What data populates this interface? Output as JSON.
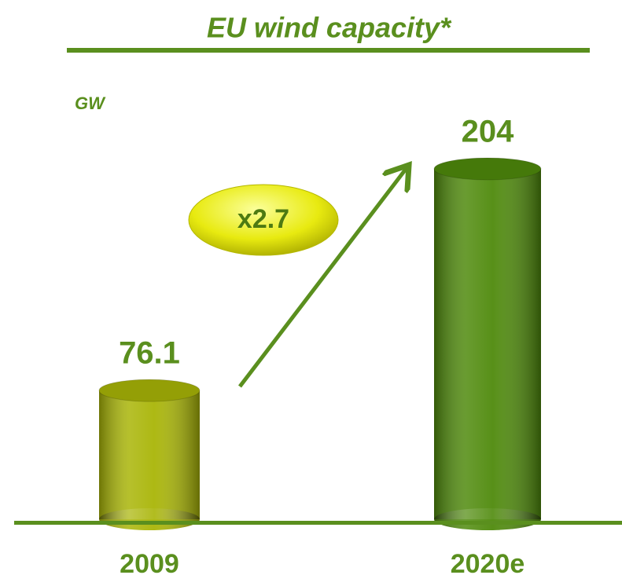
{
  "chart_data": {
    "type": "bar",
    "title": "EU wind capacity*",
    "unit_label": "GW",
    "annotation": "x2.7",
    "categories": [
      "2009",
      "2020e"
    ],
    "values": [
      76.1,
      204
    ],
    "colors": [
      "#a9b507",
      "#4f8a0c"
    ]
  }
}
